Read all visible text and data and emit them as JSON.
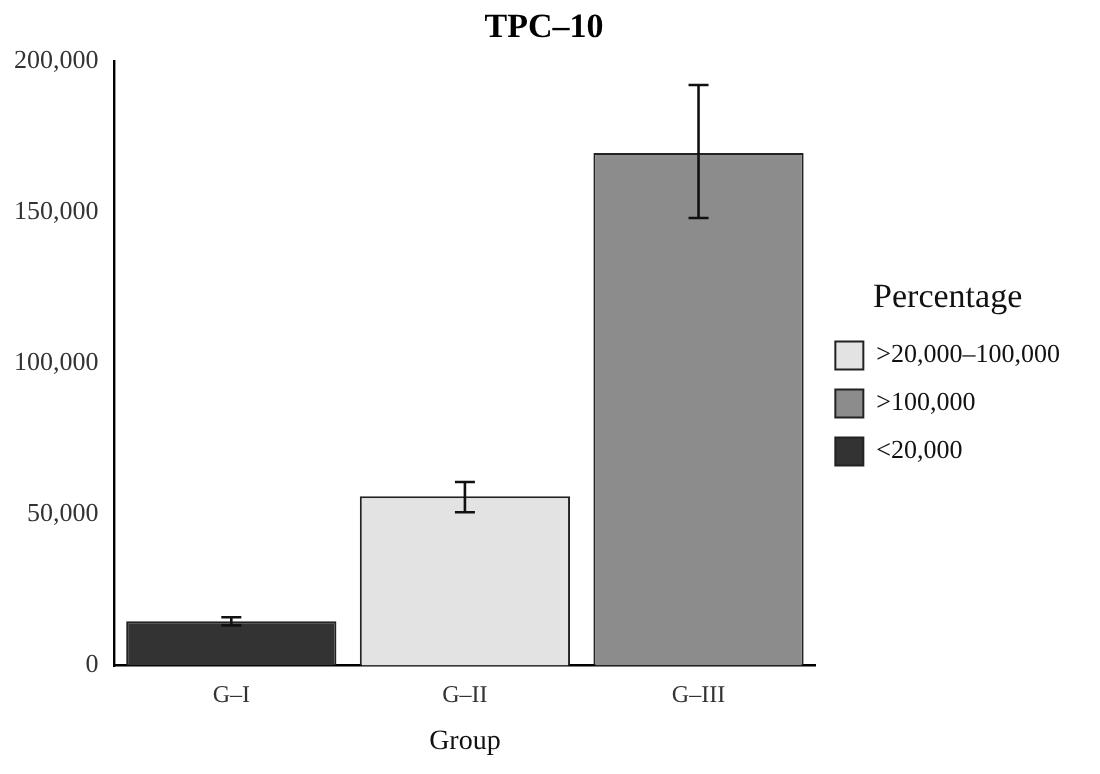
{
  "chart_data": {
    "type": "bar",
    "title": "TPC–10",
    "xlabel": "Group",
    "legend_title": "Percentage",
    "legend": "right",
    "grid": false,
    "categories": [
      "G–I",
      "G–II",
      "G–III"
    ],
    "ylim": [
      0,
      200000
    ],
    "yticks": [
      0,
      {
        "value": 50000,
        "label": "50,000"
      },
      {
        "value": 100000,
        "label": "100,000"
      },
      {
        "value": 150000,
        "label": "150,000"
      },
      {
        "value": 200000,
        "label": "200,000"
      }
    ],
    "series": [
      {
        "name": ">20,000–100,000",
        "color": "#e3e3e3",
        "values": [
          null,
          56000,
          null
        ],
        "errors": [
          null,
          [
            50700,
            60700
          ],
          null
        ]
      },
      {
        "name": ">100,000",
        "color": "#8c8c8c",
        "values": [
          null,
          null,
          169500
        ],
        "errors": [
          null,
          null,
          [
            148000,
            192000
          ]
        ]
      },
      {
        "name": "<20,000",
        "color": "#333333",
        "values": [
          14700,
          null,
          null
        ],
        "errors": [
          [
            13300,
            16000
          ],
          null,
          null
        ]
      }
    ]
  }
}
